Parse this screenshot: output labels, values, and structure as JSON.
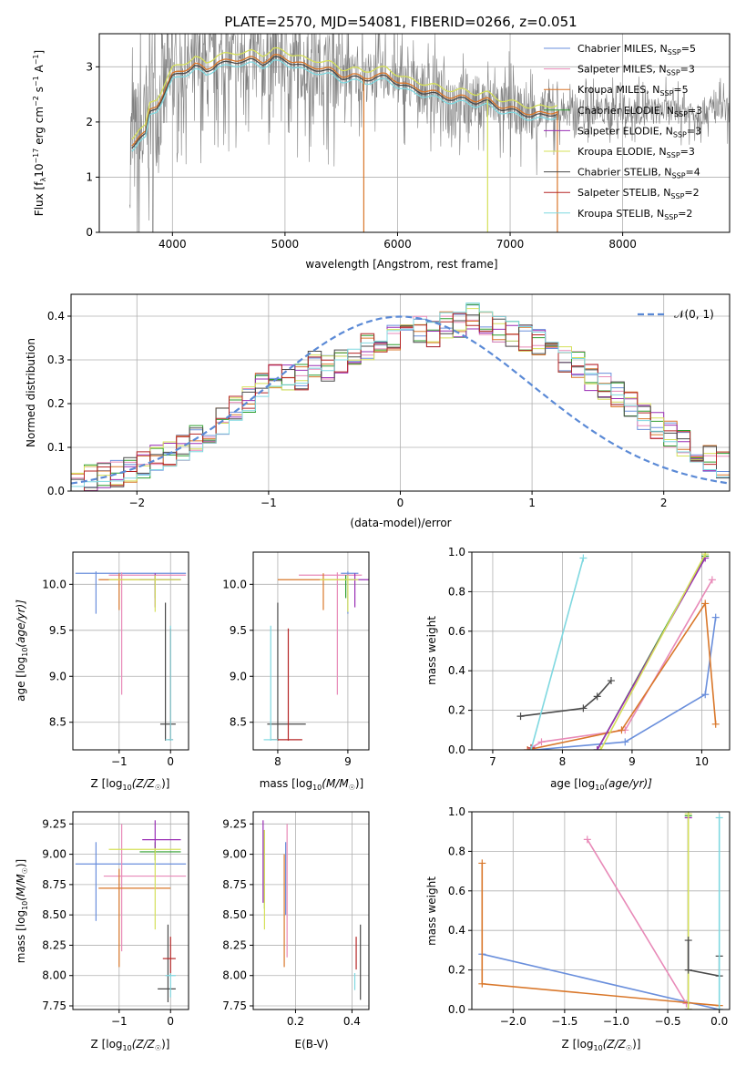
{
  "figure_title": "PLATE=2570, MJD=54081, FIBERID=0266, z=0.051",
  "colors": {
    "chabrier_miles": "#6a8fdc",
    "salpeter_miles": "#e88ab8",
    "kroupa_miles": "#d9772a",
    "chabrier_elodie": "#2e9e2e",
    "salpeter_elodie": "#9a2fb5",
    "kroupa_elodie": "#d5e05a",
    "chabrier_stelib": "#4a4a4a",
    "salpeter_stelib": "#b52626",
    "kroupa_stelib": "#7fd8e0",
    "data": "#7f7f7f",
    "normal": "#5b8ad6",
    "grid": "#b0b0b0"
  },
  "chart_data": [
    {
      "type": "line",
      "panel": "spectrum",
      "title": "PLATE=2570, MJD=54081, FIBERID=0266, z=0.051",
      "xlabel": "wavelength [Angstrom, rest frame]",
      "ylabel": "Flux [f",
      "ylabel_sub": "λ",
      "ylabel_rest": "10",
      "ylabel_exp": "−17",
      "ylabel_units": " erg cm",
      "ylabel_exp2": "−2",
      "ylabel_s": " s",
      "ylabel_exp3": "−1",
      "ylabel_a": " A",
      "ylabel_exp4": "−1",
      "ylabel_end": "]",
      "xlim": [
        3350,
        8950
      ],
      "ylim": [
        0,
        3.6
      ],
      "xticks": [
        4000,
        5000,
        6000,
        7000,
        8000
      ],
      "yticks": [
        0,
        1,
        2,
        3
      ],
      "legend_position": "top-right",
      "legend": [
        {
          "pre": "Chabrier MILES, N",
          "sub": "SSP",
          "post": "=5",
          "color_key": "chabrier_miles"
        },
        {
          "pre": "Salpeter MILES, N",
          "sub": "SSP",
          "post": "=3",
          "color_key": "salpeter_miles"
        },
        {
          "pre": "Kroupa MILES, N",
          "sub": "SSP",
          "post": "=5",
          "color_key": "kroupa_miles"
        },
        {
          "pre": "Chabrier ELODIE, N",
          "sub": "SSP",
          "post": "=3",
          "color_key": "chabrier_elodie"
        },
        {
          "pre": "Salpeter ELODIE, N",
          "sub": "SSP",
          "post": "=3",
          "color_key": "salpeter_elodie"
        },
        {
          "pre": "Kroupa ELODIE, N",
          "sub": "SSP",
          "post": "=3",
          "color_key": "kroupa_elodie"
        },
        {
          "pre": "Chabrier STELIB, N",
          "sub": "SSP",
          "post": "=4",
          "color_key": "chabrier_stelib"
        },
        {
          "pre": "Salpeter STELIB, N",
          "sub": "SSP",
          "post": "=2",
          "color_key": "salpeter_stelib"
        },
        {
          "pre": "Kroupa STELIB, N",
          "sub": "SSP",
          "post": "=2",
          "color_key": "kroupa_stelib"
        }
      ],
      "model_curve": {
        "x": [
          3640,
          3700,
          3760,
          3800,
          3860,
          3900,
          3960,
          4000,
          4100,
          4200,
          4300,
          4400,
          4500,
          4600,
          4700,
          4800,
          4900,
          5000,
          5100,
          5200,
          5300,
          5400,
          5500,
          5600,
          5700,
          5800,
          5900,
          6000,
          6100,
          6200,
          6300,
          6400,
          6500,
          6600,
          6700,
          6800,
          6900,
          7000,
          7100,
          7200,
          7300,
          7400
        ],
        "y": [
          1.6,
          1.75,
          1.8,
          2.2,
          2.3,
          2.45,
          2.7,
          2.85,
          2.95,
          3.05,
          2.95,
          3.1,
          3.1,
          3.15,
          3.15,
          3.1,
          3.2,
          3.15,
          3.1,
          3.0,
          3.0,
          2.95,
          2.85,
          2.85,
          2.8,
          2.85,
          2.85,
          2.75,
          2.65,
          2.6,
          2.55,
          2.5,
          2.45,
          2.45,
          2.4,
          2.4,
          2.3,
          2.25,
          2.2,
          2.15,
          2.15,
          2.2
        ]
      }
    },
    {
      "type": "bar",
      "panel": "residual-histogram",
      "xlabel": "(data-model)/error",
      "ylabel": "Normed distribution",
      "xlim": [
        -2.5,
        2.5
      ],
      "ylim": [
        0,
        0.45
      ],
      "xticks": [
        -2,
        -1,
        0,
        1,
        2
      ],
      "yticks": [
        0.0,
        0.1,
        0.2,
        0.3,
        0.4
      ],
      "legend_position": "top-right",
      "legend": [
        {
          "label": "𝒩(0, 1)",
          "color_key": "normal"
        }
      ],
      "bin_edges_start": -2.5,
      "bin_width": 0.1,
      "series": [
        {
          "color_key": "chabrier_miles",
          "values": [
            0.015,
            0.03,
            0.035,
            0.04,
            0.05,
            0.06,
            0.075,
            0.085,
            0.1,
            0.12,
            0.14,
            0.16,
            0.19,
            0.21,
            0.24,
            0.26,
            0.26,
            0.26,
            0.29,
            0.28,
            0.3,
            0.32,
            0.33,
            0.33,
            0.35,
            0.35,
            0.37,
            0.36,
            0.38,
            0.38,
            0.4,
            0.38,
            0.37,
            0.36,
            0.35,
            0.34,
            0.32,
            0.3,
            0.29,
            0.26,
            0.24,
            0.22,
            0.2,
            0.17,
            0.15,
            0.13,
            0.11,
            0.09,
            0.075,
            0.06
          ]
        }
      ]
    },
    {
      "type": "scatter",
      "panel": "age-vs-Z",
      "xlabel": "Z [log",
      "xlabel_sub": "10",
      "xlabel_rest": "(Z/Z",
      "xlabel_sun": "☉",
      "xlabel_end": ")]",
      "ylabel": "age  [log",
      "ylabel_sub": "10",
      "ylabel_rest": "(age/yr)]",
      "xlim": [
        -1.9,
        0.35
      ],
      "ylim": [
        8.2,
        10.35
      ],
      "xticks": [
        -1,
        0
      ],
      "yticks": [
        8.5,
        9.0,
        9.5,
        10.0
      ]
    },
    {
      "type": "scatter",
      "panel": "age-vs-mass",
      "xlabel": "mass [log",
      "xlabel_sub": "10",
      "xlabel_rest": "(M/M",
      "xlabel_sun": "☉",
      "xlabel_end": ")]",
      "xlim": [
        7.65,
        9.3
      ],
      "ylim": [
        8.2,
        10.35
      ],
      "xticks": [
        8,
        9
      ],
      "yticks": [
        8.5,
        9.0,
        9.5,
        10.0
      ]
    },
    {
      "type": "line",
      "panel": "mass-weight-vs-age",
      "xlabel": "age  [log",
      "xlabel_sub": "10",
      "xlabel_rest": "(age/yr)]",
      "ylabel": "mass weight",
      "xlim": [
        6.7,
        10.4
      ],
      "ylim": [
        0,
        1
      ],
      "xticks": [
        7,
        8,
        9,
        10
      ],
      "yticks": [
        0.0,
        0.2,
        0.4,
        0.6,
        0.8,
        1.0
      ]
    },
    {
      "type": "scatter",
      "panel": "mass-vs-Z",
      "xlabel": "Z [log",
      "xlabel_sub": "10",
      "xlabel_rest": "(Z/Z",
      "xlabel_sun": "☉",
      "xlabel_end": ")]",
      "ylabel": "mass [log",
      "ylabel_sub": "10",
      "ylabel_rest": "(M/M",
      "ylabel_sun": "☉",
      "ylabel_end": ")]",
      "xlim": [
        -1.9,
        0.35
      ],
      "ylim": [
        7.72,
        9.35
      ],
      "xticks": [
        -1,
        0
      ],
      "yticks": [
        7.75,
        8.0,
        8.25,
        8.5,
        8.75,
        9.0,
        9.25
      ]
    },
    {
      "type": "scatter",
      "panel": "mass-vs-EBV",
      "xlabel": "E(B-V)",
      "xlim": [
        0.05,
        0.46
      ],
      "ylim": [
        7.72,
        9.35
      ],
      "xticks": [
        0.2,
        0.4
      ],
      "yticks": [
        7.75,
        8.0,
        8.25,
        8.5,
        8.75,
        9.0,
        9.25
      ]
    },
    {
      "type": "line",
      "panel": "mass-weight-vs-Z",
      "xlabel": "Z [log",
      "xlabel_sub": "10",
      "xlabel_rest": "(Z/Z",
      "xlabel_sun": "☉",
      "xlabel_end": ")]",
      "ylabel": "mass weight",
      "xlim": [
        -2.4,
        0.1
      ],
      "ylim": [
        0,
        1
      ],
      "xticks": [
        -2.0,
        -1.5,
        -1.0,
        -0.5,
        0.0
      ],
      "yticks": [
        0.0,
        0.2,
        0.4,
        0.6,
        0.8,
        1.0
      ]
    }
  ],
  "models": [
    {
      "key": "chabrier_miles",
      "age": [
        10.12,
        1.6,
        10.3,
        9.68,
        10.14
      ],
      "Z": [
        -1.45,
        -1.85,
        0.3
      ],
      "mass": [
        9.0,
        8.9,
        9.15
      ],
      "mz": [
        -1.45,
        8.92,
        -1.85,
        0.3,
        8.45,
        9.1
      ],
      "ebv": [
        0.165,
        8.5,
        9.1
      ],
      "mw_age": [
        [
          7.6,
          0.0
        ],
        [
          8.9,
          0.04
        ],
        [
          10.05,
          0.28
        ],
        [
          10.2,
          0.67
        ]
      ],
      "mw_z": [
        [
          -2.3,
          0.28
        ],
        [
          0.0,
          0.0
        ]
      ]
    },
    {
      "key": "salpeter_miles",
      "age": [
        10.1,
        1.6,
        10.25,
        8.8,
        10.13
      ],
      "Z": [
        -0.95,
        -1.2,
        0.3
      ],
      "mass": [
        8.85,
        8.3,
        9.2
      ],
      "mz": [
        -0.95,
        8.82,
        -1.3,
        0.3,
        8.2,
        9.25
      ],
      "ebv": [
        0.17,
        8.15,
        9.25
      ],
      "mw_age": [
        [
          7.5,
          0.0
        ],
        [
          7.7,
          0.04
        ],
        [
          8.9,
          0.1
        ],
        [
          10.15,
          0.86
        ]
      ],
      "mw_z": [
        [
          -1.28,
          0.86
        ],
        [
          -0.32,
          0.03
        ]
      ]
    },
    {
      "key": "kroupa_miles",
      "age": [
        10.05,
        1.6,
        10.1,
        9.72,
        10.12
      ],
      "Z": [
        -1.0,
        -1.4,
        0.0
      ],
      "mass": [
        8.65,
        8.0,
        9.0
      ],
      "mz": [
        -1.0,
        8.72,
        -1.4,
        0.0,
        8.07,
        8.88
      ],
      "ebv": [
        0.16,
        8.07,
        9.0
      ],
      "mw_age": [
        [
          7.5,
          0.0
        ],
        [
          8.85,
          0.1
        ],
        [
          10.05,
          0.74
        ],
        [
          10.2,
          0.13
        ]
      ],
      "mw_z": [
        [
          -2.3,
          0.74
        ],
        [
          -2.3,
          0.13
        ],
        [
          0.0,
          0.02
        ]
      ]
    },
    {
      "key": "chabrier_elodie",
      "age": [
        10.05,
        1.6,
        10.1,
        9.85,
        10.1
      ],
      "Z": [
        -0.3,
        -0.6,
        0.2
      ],
      "mass": [
        8.97,
        8.95,
        9.1
      ],
      "mz": [
        -0.3,
        9.02,
        -0.6,
        0.2,
        8.95,
        9.1
      ],
      "ebv": [
        0.09,
        8.55,
        9.2
      ],
      "mw_age": [
        [
          8.5,
          0.0
        ],
        [
          10.05,
          0.98
        ]
      ],
      "mw_z": [
        [
          -0.3,
          0.0
        ],
        [
          -0.3,
          0.98
        ]
      ]
    },
    {
      "key": "salpeter_elodie",
      "age": [
        10.05,
        1.6,
        10.1,
        9.75,
        10.12
      ],
      "Z": [
        -0.3,
        -0.6,
        0.2
      ],
      "mass": [
        9.1,
        9.0,
        9.3
      ],
      "mz": [
        -0.3,
        9.12,
        -0.55,
        0.2,
        9.05,
        9.28
      ],
      "ebv": [
        0.085,
        8.6,
        9.28
      ],
      "mw_age": [
        [
          8.5,
          0.0
        ],
        [
          10.05,
          0.97
        ]
      ],
      "mw_z": [
        [
          -0.3,
          0.0
        ],
        [
          -0.3,
          0.97
        ]
      ]
    },
    {
      "key": "kroupa_elodie",
      "age": [
        10.05,
        1.6,
        10.1,
        9.7,
        10.1
      ],
      "Z": [
        -0.3,
        -1.2,
        0.2
      ],
      "mass": [
        9.0,
        8.6,
        9.15
      ],
      "mz": [
        -0.3,
        9.04,
        -1.2,
        0.2,
        8.38,
        9.05
      ],
      "ebv": [
        0.09,
        8.38,
        9.2
      ],
      "mw_age": [
        [
          8.55,
          0.0
        ],
        [
          10.05,
          0.99
        ]
      ],
      "mw_z": [
        [
          -0.3,
          0.0
        ],
        [
          -0.3,
          0.99
        ]
      ]
    },
    {
      "key": "chabrier_stelib",
      "age": [
        8.48,
        1.6,
        10.1,
        8.3,
        9.8
      ],
      "Z": [
        -0.1,
        -0.2,
        0.1
      ],
      "mass": [
        8.0,
        7.85,
        8.4
      ],
      "mz": [
        -0.05,
        7.89,
        -0.25,
        0.1,
        7.78,
        8.42
      ],
      "ebv": [
        0.43,
        7.8,
        8.42
      ],
      "mw_age": [
        [
          7.4,
          0.17
        ],
        [
          8.3,
          0.21
        ],
        [
          8.5,
          0.27
        ],
        [
          8.7,
          0.35
        ]
      ],
      "mw_z": [
        [
          -0.3,
          0.35
        ],
        [
          -0.3,
          0.2
        ],
        [
          0.0,
          0.17
        ],
        [
          0.0,
          0.27
        ]
      ]
    },
    {
      "key": "salpeter_stelib",
      "age": [
        8.31,
        1.6,
        10.1,
        8.3,
        9.52
      ],
      "Z": [
        0.0,
        -0.05,
        0.05
      ],
      "mass": [
        8.15,
        7.9,
        8.35
      ],
      "mz": [
        0.0,
        8.14,
        -0.15,
        0.1,
        8.0,
        8.32
      ],
      "ebv": [
        0.415,
        8.05,
        8.32
      ],
      "mw_age": [
        [
          7.55,
          0.0
        ],
        [
          7.55,
          0.01
        ]
      ],
      "mw_z": [
        [
          0.0,
          0.0
        ]
      ]
    },
    {
      "key": "kroupa_stelib",
      "age": [
        8.31,
        1.6,
        10.1,
        8.3,
        9.55
      ],
      "Z": [
        0.0,
        -0.1,
        0.05
      ],
      "mass": [
        7.9,
        7.8,
        8.0
      ],
      "mz": [
        0.0,
        8.0,
        -0.1,
        0.1,
        7.82,
        8.02
      ],
      "ebv": [
        0.41,
        7.88,
        8.02
      ],
      "mw_age": [
        [
          7.55,
          0.0
        ],
        [
          8.3,
          0.97
        ]
      ],
      "mw_z": [
        [
          0.0,
          0.0
        ],
        [
          0.0,
          0.97
        ]
      ]
    }
  ]
}
